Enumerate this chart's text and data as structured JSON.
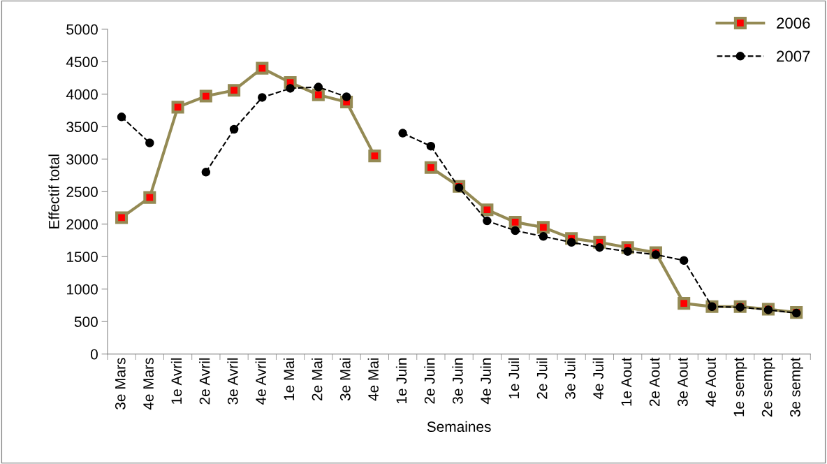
{
  "chart_data": {
    "type": "line",
    "xlabel": "Semaines",
    "ylabel": "Effectif total",
    "categories": [
      "3e Mars",
      "4e Mars",
      "1e Avril",
      "2e Avril",
      "3e Avril",
      "4e Avril",
      "1e Mai",
      "2e Mai",
      "3e Mai",
      "4e Mai",
      "1e Juin",
      "2e Juin",
      "3e Juin",
      "4e Juin",
      "1e Juil",
      "2e Juil",
      "3e Juil",
      "4e Juil",
      "1e Aout",
      "2e Aout",
      "3e Aout",
      "4e Aout",
      "1e sempt",
      "2e sempt",
      "3e sempt"
    ],
    "series": [
      {
        "name": "2006",
        "color": "#948a54",
        "marker": "square",
        "line_style": "solid",
        "values": [
          2100,
          2410,
          3800,
          3970,
          4060,
          4400,
          4180,
          3990,
          3880,
          3050,
          null,
          2870,
          2580,
          2220,
          2030,
          1950,
          1780,
          1720,
          1640,
          1560,
          780,
          730,
          730,
          690,
          640
        ]
      },
      {
        "name": "2007",
        "color": "#000000",
        "marker": "circle",
        "line_style": "dashed",
        "values": [
          3650,
          3250,
          null,
          2800,
          3460,
          3950,
          4090,
          4110,
          3960,
          null,
          3400,
          3200,
          2560,
          2050,
          1900,
          1810,
          1720,
          1640,
          1580,
          1530,
          1440,
          730,
          720,
          680,
          630
        ]
      }
    ],
    "ylim": [
      0,
      5000
    ],
    "yticks": [
      0,
      500,
      1000,
      1500,
      2000,
      2500,
      3000,
      3500,
      4000,
      4500,
      5000
    ],
    "grid": false,
    "legend": "top right"
  }
}
